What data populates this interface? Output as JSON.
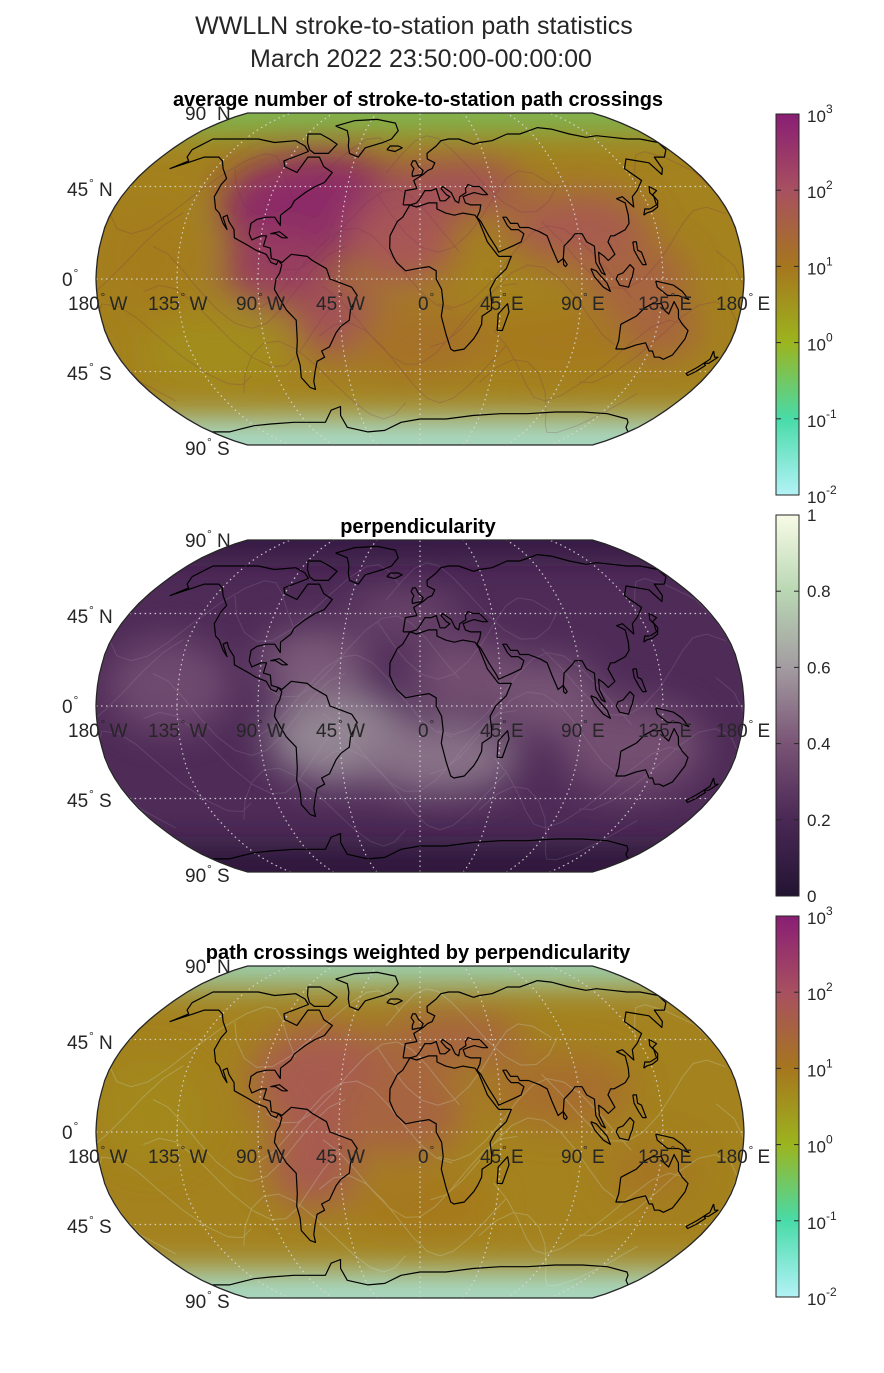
{
  "figure": {
    "title_line1": "WWLLN stroke-to-station path statistics",
    "title_line2": "March 2022 23:50:00-00:00:00"
  },
  "panels": [
    {
      "title": "average number of stroke-to-station path crossings",
      "colormap": "teal-olive-brown-magenta",
      "colors": [
        "#b3f2f7",
        "#48dba8",
        "#9cb41e",
        "#a6761e",
        "#a85060",
        "#891e74"
      ],
      "colorbar": {
        "scale": "log",
        "base": "10",
        "ticks": [
          {
            "base": "10",
            "exp": "3"
          },
          {
            "base": "10",
            "exp": "2"
          },
          {
            "base": "10",
            "exp": "1"
          },
          {
            "base": "10",
            "exp": "0"
          },
          {
            "base": "10",
            "exp": "-1"
          },
          {
            "base": "10",
            "exp": "-2"
          }
        ]
      },
      "lat_labels": [
        {
          "deg": "90",
          "dir": "N"
        },
        {
          "deg": "45",
          "dir": "N"
        },
        {
          "deg": "0",
          "dir": ""
        },
        {
          "deg": "45",
          "dir": "S"
        },
        {
          "deg": "90",
          "dir": "S"
        }
      ],
      "lon_labels": [
        {
          "deg": "180",
          "dir": "W"
        },
        {
          "deg": "135",
          "dir": "W"
        },
        {
          "deg": "90",
          "dir": "W"
        },
        {
          "deg": "45",
          "dir": "W"
        },
        {
          "deg": "0",
          "dir": ""
        },
        {
          "deg": "45",
          "dir": "E"
        },
        {
          "deg": "90",
          "dir": "E"
        },
        {
          "deg": "135",
          "dir": "E"
        },
        {
          "deg": "180",
          "dir": "E"
        }
      ]
    },
    {
      "title": "perpendicularity",
      "colormap": "dark-purple-to-cream",
      "colors": [
        "#231433",
        "#4a2855",
        "#7a5476",
        "#a39ca1",
        "#b9d7b3",
        "#f8fbe6"
      ],
      "colorbar": {
        "scale": "linear",
        "ticks": [
          "1",
          "0.8",
          "0.6",
          "0.4",
          "0.2",
          "0"
        ]
      },
      "lat_labels": [
        {
          "deg": "90",
          "dir": "N"
        },
        {
          "deg": "45",
          "dir": "N"
        },
        {
          "deg": "0",
          "dir": ""
        },
        {
          "deg": "45",
          "dir": "S"
        },
        {
          "deg": "90",
          "dir": "S"
        }
      ],
      "lon_labels": [
        {
          "deg": "180",
          "dir": "W"
        },
        {
          "deg": "135",
          "dir": "W"
        },
        {
          "deg": "90",
          "dir": "W"
        },
        {
          "deg": "45",
          "dir": "W"
        },
        {
          "deg": "0",
          "dir": ""
        },
        {
          "deg": "45",
          "dir": "E"
        },
        {
          "deg": "90",
          "dir": "E"
        },
        {
          "deg": "135",
          "dir": "E"
        },
        {
          "deg": "180",
          "dir": "E"
        }
      ]
    },
    {
      "title": "path crossings weighted by perpendicularity",
      "colormap": "teal-olive-brown-magenta",
      "colors": [
        "#b3f2f7",
        "#48dba8",
        "#9cb41e",
        "#a6761e",
        "#a85060",
        "#891e74"
      ],
      "colorbar": {
        "scale": "log",
        "base": "10",
        "ticks": [
          {
            "base": "10",
            "exp": "3"
          },
          {
            "base": "10",
            "exp": "2"
          },
          {
            "base": "10",
            "exp": "1"
          },
          {
            "base": "10",
            "exp": "0"
          },
          {
            "base": "10",
            "exp": "-1"
          },
          {
            "base": "10",
            "exp": "-2"
          }
        ]
      },
      "lat_labels": [
        {
          "deg": "90",
          "dir": "N"
        },
        {
          "deg": "45",
          "dir": "N"
        },
        {
          "deg": "0",
          "dir": ""
        },
        {
          "deg": "45",
          "dir": "S"
        },
        {
          "deg": "90",
          "dir": "S"
        }
      ],
      "lon_labels": [
        {
          "deg": "180",
          "dir": "W"
        },
        {
          "deg": "135",
          "dir": "W"
        },
        {
          "deg": "90",
          "dir": "W"
        },
        {
          "deg": "45",
          "dir": "W"
        },
        {
          "deg": "0",
          "dir": ""
        },
        {
          "deg": "45",
          "dir": "E"
        },
        {
          "deg": "90",
          "dir": "E"
        },
        {
          "deg": "135",
          "dir": "E"
        },
        {
          "deg": "180",
          "dir": "E"
        }
      ]
    }
  ]
}
